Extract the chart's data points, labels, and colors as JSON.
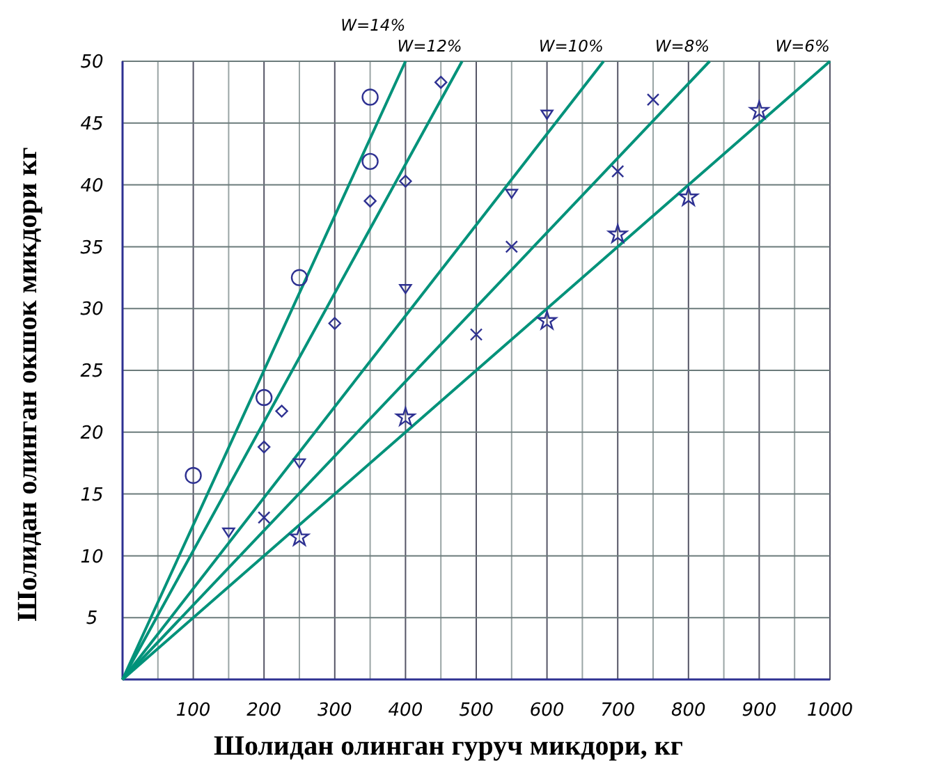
{
  "chart_data": {
    "type": "scatter",
    "xlabel": "Шолидан олинган гуруч микдори, кг",
    "ylabel": "Шолидан олинган окшок микдори кг",
    "xlim": [
      0,
      1000
    ],
    "ylim": [
      0,
      50
    ],
    "xticks": [
      {
        "value": 50,
        "label": null
      },
      100,
      {
        "value": 150,
        "label": null
      },
      200,
      {
        "value": 250,
        "label": null
      },
      300,
      {
        "value": 350,
        "label": null
      },
      400,
      {
        "value": 450,
        "label": null
      },
      500,
      {
        "value": 550,
        "label": null
      },
      600,
      {
        "value": 650,
        "label": null
      },
      700,
      {
        "value": 750,
        "label": null
      },
      800,
      {
        "value": 850,
        "label": null
      },
      900,
      {
        "value": 950,
        "label": null
      },
      1000
    ],
    "yticks": [
      5,
      10,
      15,
      20,
      25,
      30,
      35,
      40,
      45,
      50
    ],
    "grid": true,
    "legend": false,
    "series": [
      {
        "type": "line",
        "name": "W=14%",
        "color": "#00927a",
        "x": [
          0,
          400
        ],
        "values": [
          0,
          50
        ],
        "marker": "none"
      },
      {
        "type": "line",
        "name": "W=12%",
        "color": "#00927a",
        "x": [
          0,
          480
        ],
        "values": [
          0,
          50
        ],
        "marker": "none"
      },
      {
        "type": "line",
        "name": "W=10%",
        "color": "#00927a",
        "x": [
          0,
          680
        ],
        "values": [
          0,
          50
        ],
        "marker": "none"
      },
      {
        "type": "line",
        "name": "W=8%",
        "color": "#00927a",
        "x": [
          0,
          830
        ],
        "values": [
          0,
          50
        ],
        "marker": "none"
      },
      {
        "type": "line",
        "name": "W=6%",
        "color": "#00927a",
        "x": [
          0,
          1000
        ],
        "values": [
          0,
          50
        ],
        "marker": "none"
      },
      {
        "color": "#2e3192",
        "marker": "circle",
        "x": [
          100,
          200,
          250,
          350,
          350
        ],
        "values": [
          16.5,
          22.8,
          32.5,
          41.9,
          47.1
        ]
      },
      {
        "color": "#2e3192",
        "marker": "diamond",
        "x": [
          200,
          225,
          300,
          350,
          400,
          450
        ],
        "values": [
          18.8,
          21.7,
          28.8,
          38.7,
          40.3,
          48.3
        ]
      },
      {
        "color": "#2e3192",
        "marker": "triangle",
        "x": [
          150,
          250,
          400,
          550,
          600
        ],
        "values": [
          11.9,
          17.5,
          31.6,
          39.3,
          45.7
        ]
      },
      {
        "color": "#2e3192",
        "marker": "cross",
        "x": [
          200,
          500,
          550,
          700,
          750
        ],
        "values": [
          13.1,
          27.9,
          35,
          41.1,
          46.9
        ]
      },
      {
        "color": "#2e3192",
        "marker": "star",
        "x": [
          250,
          400,
          600,
          700,
          800,
          900
        ],
        "values": [
          11.5,
          21.2,
          29,
          36,
          39,
          46
        ]
      }
    ]
  }
}
